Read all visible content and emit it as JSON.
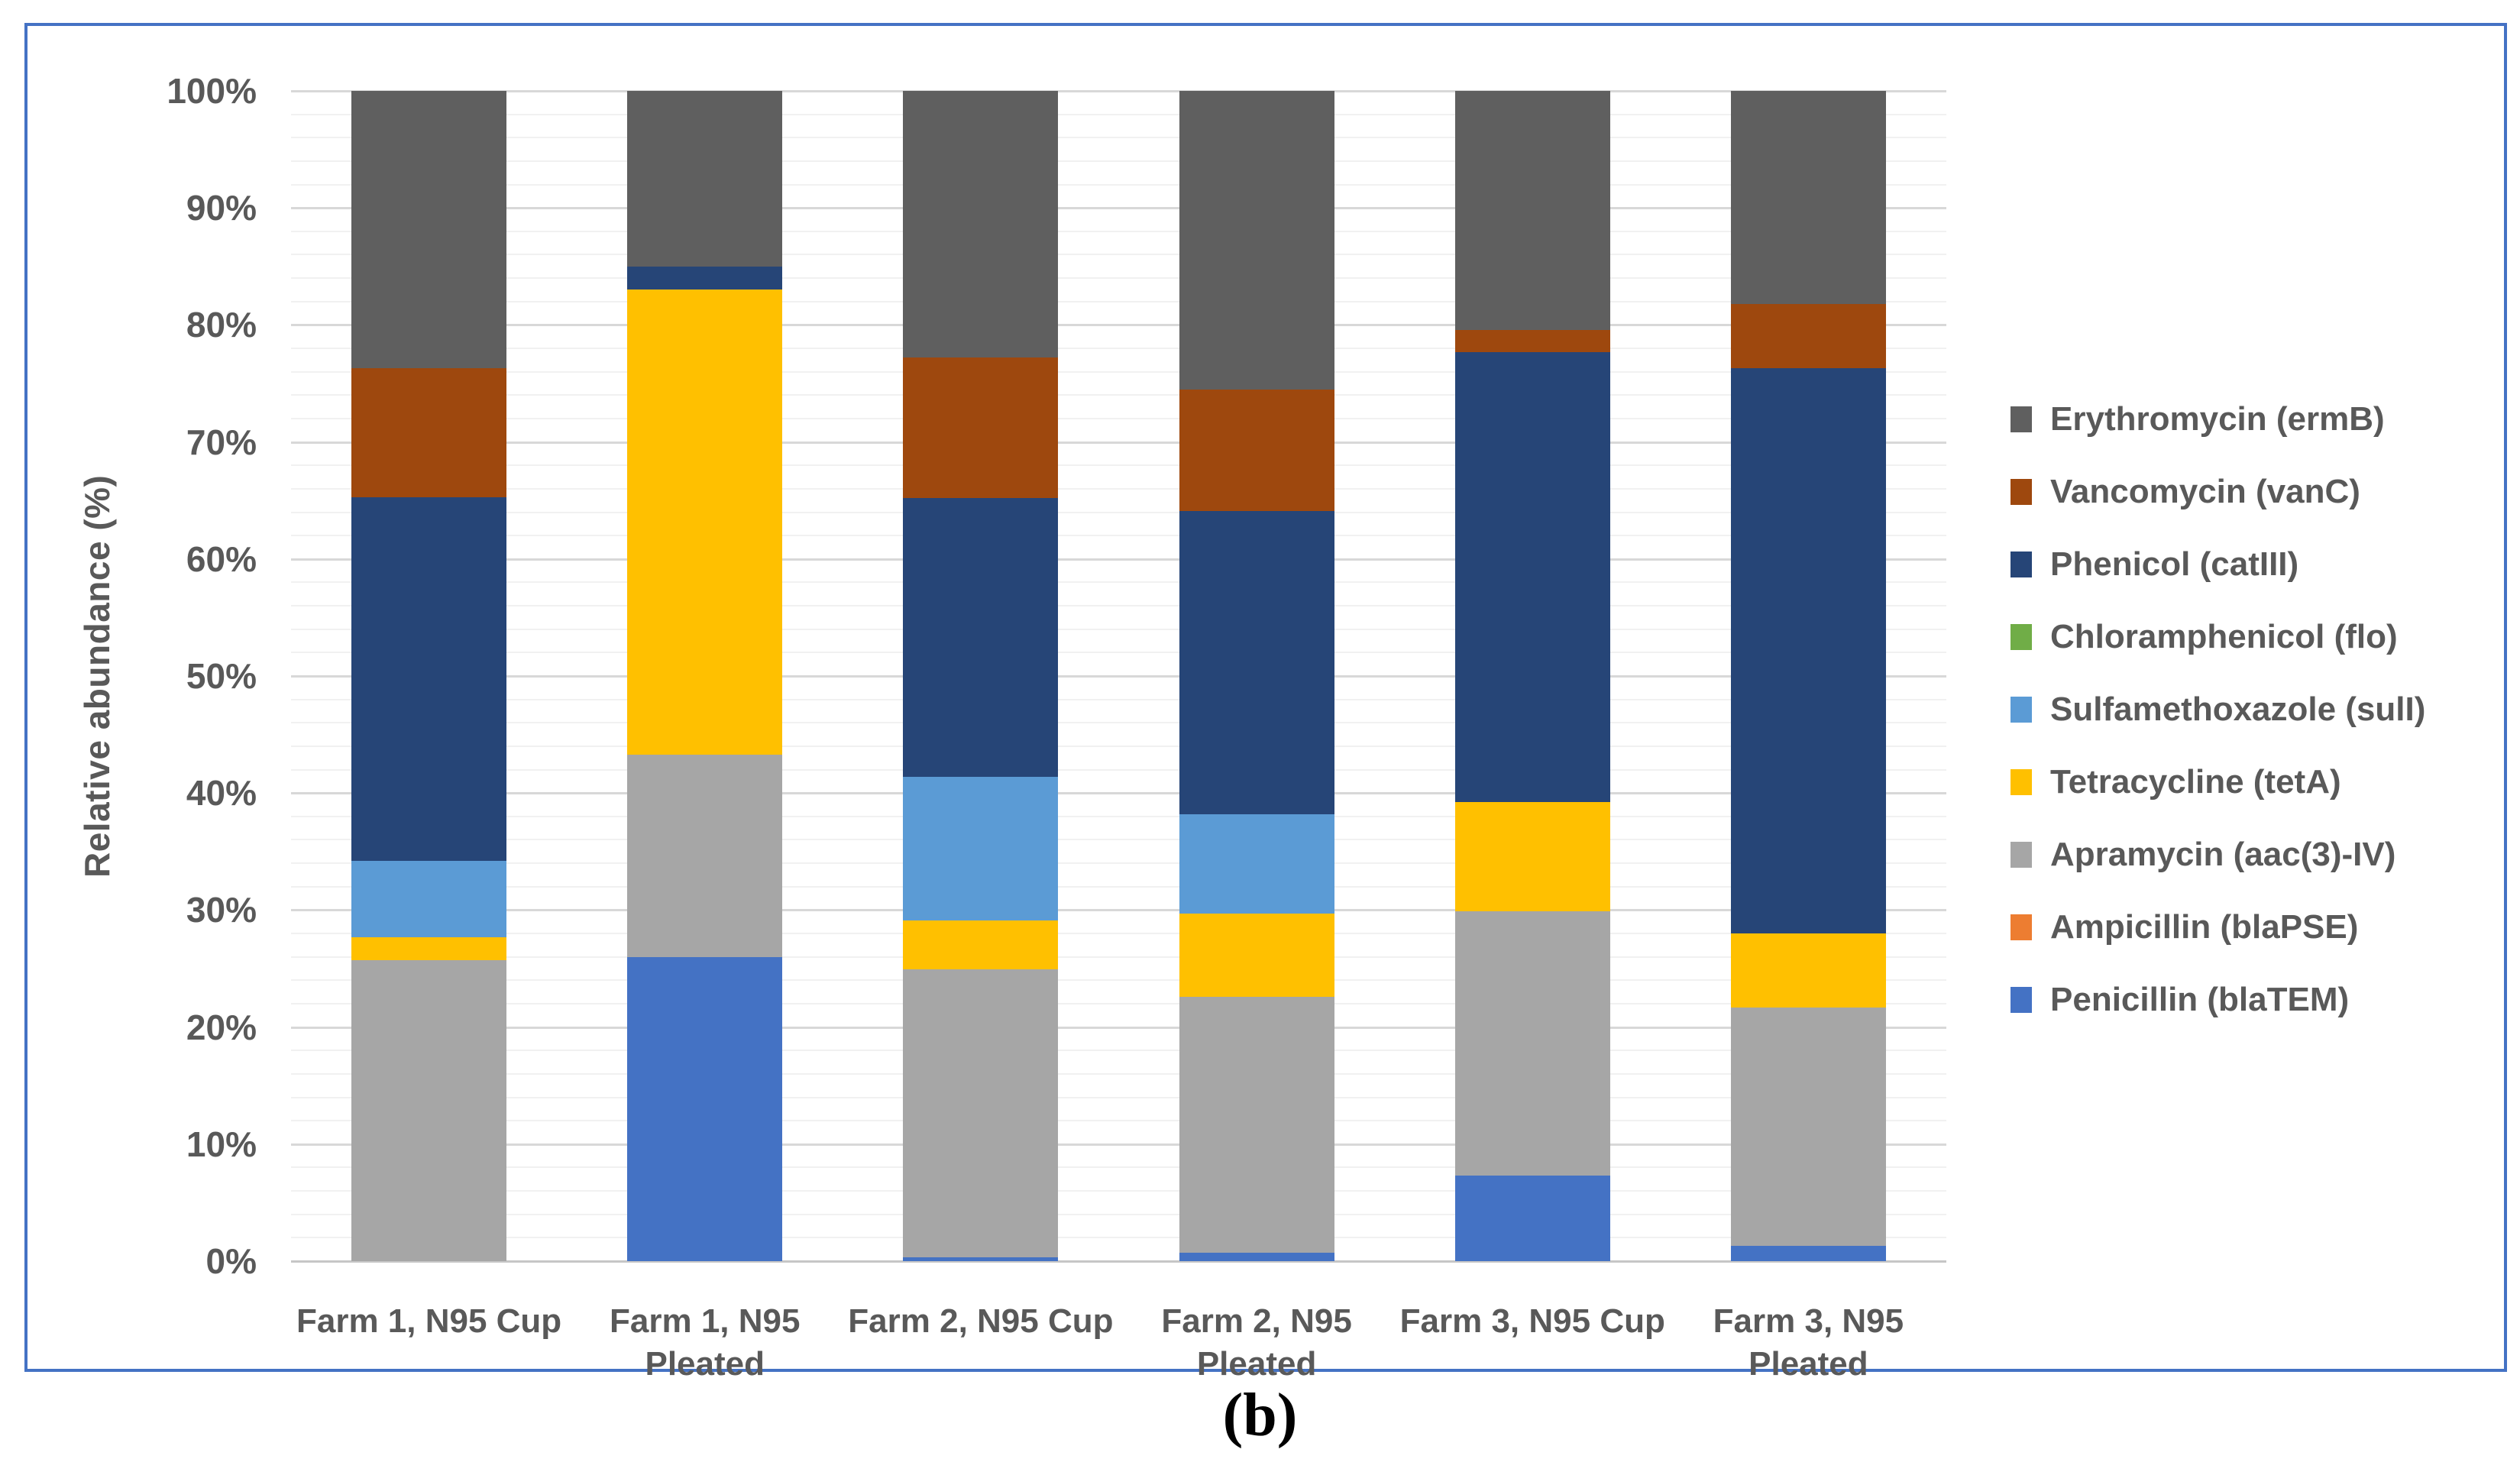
{
  "figure": {
    "caption": "(b)"
  },
  "colors": {
    "border": "#4472C4",
    "text": "#595959",
    "grid_major": "#D8D8D8",
    "grid_minor": "#F1F1F1",
    "axis_line": "#C6C6C6",
    "background": "#FFFFFF"
  },
  "chart_data": {
    "type": "bar",
    "stacked": true,
    "title": "",
    "xlabel": "",
    "ylabel": "Relative abundance (%)",
    "ylim": [
      0,
      100
    ],
    "y_major_step": 10,
    "y_minor_step": 2,
    "grid": true,
    "legend_position": "right",
    "y_tick_labels": [
      "0%",
      "10%",
      "20%",
      "30%",
      "40%",
      "50%",
      "60%",
      "70%",
      "80%",
      "90%",
      "100%"
    ],
    "categories": [
      "Farm 1, N95 Cup",
      "Farm 1, N95 Pleated",
      "Farm 2, N95 Cup",
      "Farm 2, N95 Pleated",
      "Farm 3, N95 Cup",
      "Farm 3, N95 Pleated"
    ],
    "category_lines": [
      [
        "Farm 1, N95 Cup"
      ],
      [
        "Farm 1, N95",
        "Pleated"
      ],
      [
        "Farm 2, N95 Cup"
      ],
      [
        "Farm 2, N95",
        "Pleated"
      ],
      [
        "Farm 3, N95 Cup"
      ],
      [
        "Farm 3, N95",
        "Pleated"
      ]
    ],
    "series": [
      {
        "name": "Erythromycin (ermB)",
        "color": "#5F5F5F",
        "values": [
          23.7,
          15.0,
          22.8,
          25.5,
          20.4,
          18.2
        ]
      },
      {
        "name": "Vancomycin (vanC)",
        "color": "#9E480E",
        "values": [
          11.0,
          0.0,
          12.0,
          10.4,
          1.9,
          5.5
        ]
      },
      {
        "name": "Phenicol (catIII)",
        "color": "#264577",
        "values": [
          31.1,
          2.0,
          23.8,
          25.9,
          38.5,
          48.3
        ]
      },
      {
        "name": "Chloramphenicol (flo)",
        "color": "#70AD47",
        "values": [
          0.0,
          0.0,
          0.0,
          0.0,
          0.0,
          0.0
        ]
      },
      {
        "name": "Sulfamethoxazole (sulI)",
        "color": "#5B9BD5",
        "values": [
          6.5,
          0.0,
          12.3,
          8.5,
          0.0,
          0.0
        ]
      },
      {
        "name": "Tetracycline (tetA)",
        "color": "#FFC000",
        "values": [
          2.0,
          39.7,
          4.2,
          7.1,
          9.3,
          6.3
        ]
      },
      {
        "name": "Apramycin (aac(3)-IV)",
        "color": "#A6A6A6",
        "values": [
          25.7,
          17.3,
          24.6,
          21.9,
          22.6,
          20.4
        ]
      },
      {
        "name": "Ampicillin (blaPSE)",
        "color": "#ED7D31",
        "values": [
          0.0,
          0.0,
          0.0,
          0.0,
          0.0,
          0.0
        ]
      },
      {
        "name": "Penicillin (blaTEM)",
        "color": "#4472C4",
        "values": [
          0.0,
          26.0,
          0.3,
          0.7,
          7.3,
          1.3
        ]
      }
    ]
  }
}
